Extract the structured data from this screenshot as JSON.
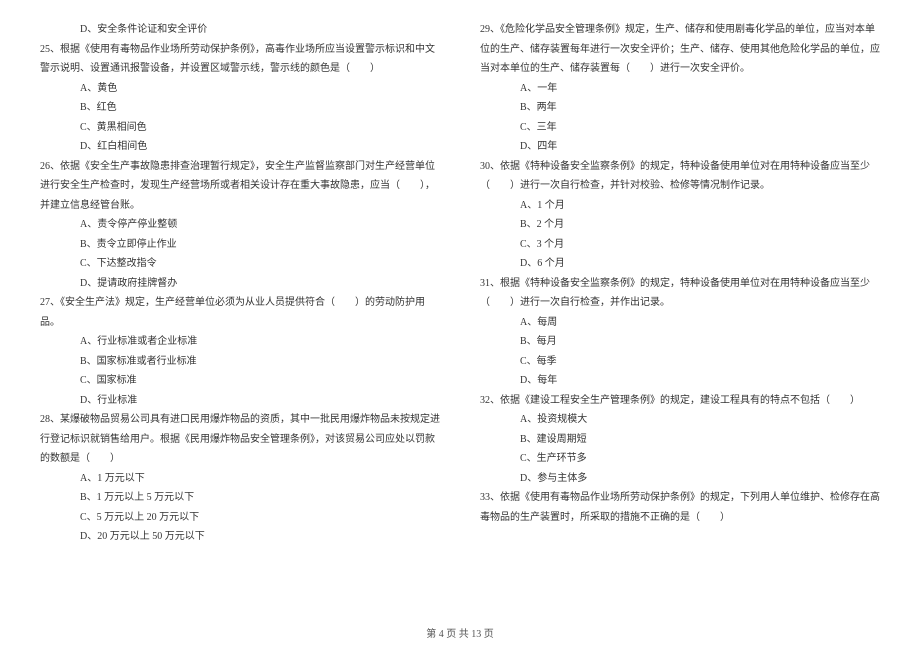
{
  "leftColumn": {
    "q24_optD": "D、安全条件论证和安全评价",
    "q25": "25、根据《使用有毒物品作业场所劳动保护条例》，高毒作业场所应当设置警示标识和中文警示说明、设置通讯报警设备，并设置区域警示线，警示线的颜色是（　　）",
    "q25_optA": "A、黄色",
    "q25_optB": "B、红色",
    "q25_optC": "C、黄黑相间色",
    "q25_optD": "D、红白相间色",
    "q26": "26、依据《安全生产事故隐患排查治理暂行规定》，安全生产监督监察部门对生产经营单位进行安全生产检查时，发现生产经营场所或者相关设计存在重大事故隐患，应当（　　），并建立信息经管台账。",
    "q26_optA": "A、责令停产停业整顿",
    "q26_optB": "B、责令立即停止作业",
    "q26_optC": "C、下达整改指令",
    "q26_optD": "D、提请政府挂牌督办",
    "q27": "27、《安全生产法》规定，生产经营单位必须为从业人员提供符合（　　）的劳动防护用品。",
    "q27_optA": "A、行业标准或者企业标准",
    "q27_optB": "B、国家标准或者行业标准",
    "q27_optC": "C、国家标准",
    "q27_optD": "D、行业标准",
    "q28": "28、某爆破物品贸易公司具有进口民用爆炸物品的资质，其中一批民用爆炸物品未按规定进行登记标识就销售给用户。根据《民用爆炸物品安全管理条例》，对该贸易公司应处以罚款的数额是（　　）",
    "q28_optA": "A、1 万元以下",
    "q28_optB": "B、1 万元以上 5 万元以下",
    "q28_optC": "C、5 万元以上 20 万元以下",
    "q28_optD": "D、20 万元以上 50 万元以下"
  },
  "rightColumn": {
    "q29": "29、《危险化学品安全管理条例》规定，生产、储存和使用剧毒化学品的单位，应当对本单位的生产、储存装置每年进行一次安全评价；生产、储存、使用其他危险化学品的单位，应当对本单位的生产、储存装置每（　　）进行一次安全评价。",
    "q29_optA": "A、一年",
    "q29_optB": "B、两年",
    "q29_optC": "C、三年",
    "q29_optD": "D、四年",
    "q30": "30、依据《特种设备安全监察条例》的规定，特种设备使用单位对在用特种设备应当至少（　　）进行一次自行检查，并针对校验、检修等情况制作记录。",
    "q30_optA": "A、1 个月",
    "q30_optB": "B、2 个月",
    "q30_optC": "C、3 个月",
    "q30_optD": "D、6 个月",
    "q31": "31、根据《特种设备安全监察条例》的规定，特种设备使用单位对在用特种设备应当至少（　　）进行一次自行检查，并作出记录。",
    "q31_optA": "A、每周",
    "q31_optB": "B、每月",
    "q31_optC": "C、每季",
    "q31_optD": "D、每年",
    "q32": "32、依据《建设工程安全生产管理条例》的规定，建设工程具有的特点不包括（　　）",
    "q32_optA": "A、投资规模大",
    "q32_optB": "B、建设周期短",
    "q32_optC": "C、生产环节多",
    "q32_optD": "D、参与主体多",
    "q33": "33、依据《使用有毒物品作业场所劳动保护条例》的规定，下列用人单位维护、检修存在高毒物品的生产装置时，所采取的措施不正确的是（　　）"
  },
  "footer": "第 4 页 共 13 页"
}
